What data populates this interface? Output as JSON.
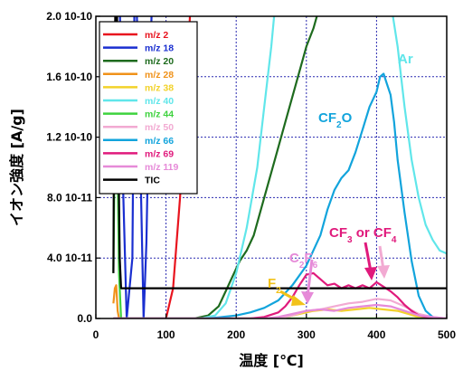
{
  "chart_data": {
    "type": "line",
    "xlabel": "温度 [℃]",
    "ylabel": "イオン強度 [A/g]",
    "xlim": [
      0,
      500
    ],
    "ylim": [
      0,
      2e-10
    ],
    "grid": true,
    "legend_position": "top-left",
    "x_ticks": [
      "0",
      "100",
      "200",
      "300",
      "400",
      "500"
    ],
    "y_ticks": [
      "0.0",
      "4.0 10-11",
      "8.0 10-11",
      "1.2 10-10",
      "1.6 10-10",
      "2.0 10-10"
    ],
    "series": [
      {
        "name": "m/z  2",
        "color": "#e8141e",
        "x": [
          25,
          60,
          90,
          100,
          110,
          120,
          130,
          135,
          500
        ],
        "y": [
          0,
          0,
          0,
          0.0,
          2e-11,
          8e-11,
          1.6e-10,
          2.1e-10,
          2.1e-10
        ]
      },
      {
        "name": "m/z 18",
        "color": "#1a2fd0",
        "x": [
          25,
          30,
          34,
          38,
          44,
          52,
          55,
          58,
          64,
          68,
          72,
          76,
          80,
          84,
          90,
          500
        ],
        "y": [
          9e-11,
          2.1e-10,
          2.1e-10,
          1e-10,
          0,
          4e-11,
          2.1e-10,
          2.1e-10,
          9e-11,
          0,
          5e-11,
          1.5e-10,
          2.1e-10,
          2.1e-10,
          2.1e-10,
          2.1e-10
        ]
      },
      {
        "name": "m/z 20",
        "color": "#1e6b1e",
        "x": [
          100,
          140,
          160,
          175,
          185,
          195,
          205,
          215,
          225,
          240,
          255,
          270,
          285,
          300,
          310,
          315,
          318
        ],
        "y": [
          0,
          0,
          2e-12,
          8e-12,
          1.8e-11,
          2.8e-11,
          3.8e-11,
          4.5e-11,
          5.5e-11,
          8e-11,
          1.05e-10,
          1.3e-10,
          1.55e-10,
          1.8e-10,
          1.92e-10,
          2e-10,
          2.1e-10
        ]
      },
      {
        "name": "m/z 28",
        "color": "#f0921a",
        "x": [
          25,
          27,
          29,
          31,
          33,
          40,
          500
        ],
        "y": [
          1e-11,
          2e-11,
          2.2e-11,
          5e-12,
          0,
          0,
          0
        ]
      },
      {
        "name": "m/z 38",
        "color": "#f2d22a",
        "x": [
          25,
          250,
          270,
          290,
          310,
          330,
          350,
          370,
          390,
          410,
          430,
          460,
          500
        ],
        "y": [
          0,
          0,
          1e-12,
          3e-12,
          5e-12,
          6e-12,
          5e-12,
          6e-12,
          7e-12,
          6e-12,
          5e-12,
          1e-12,
          0
        ]
      },
      {
        "name": "m/z 40",
        "color": "#60e6ea",
        "x": [
          25,
          150,
          170,
          185,
          200,
          215,
          230,
          240,
          250,
          255,
          258,
          420,
          430,
          440,
          450,
          460,
          470,
          480,
          490,
          500
        ],
        "y": [
          0,
          0,
          2e-12,
          1e-11,
          3e-11,
          6e-11,
          1e-10,
          1.4e-10,
          1.8e-10,
          2.05e-10,
          2.1e-10,
          2.1e-10,
          1.8e-10,
          1.4e-10,
          1.05e-10,
          8e-11,
          6.2e-11,
          5.2e-11,
          4.5e-11,
          4.3e-11
        ]
      },
      {
        "name": "m/z 44",
        "color": "#3ed23e",
        "x": [
          25,
          27,
          29,
          31,
          33,
          36,
          500
        ],
        "y": [
          3e-11,
          1.2e-10,
          1.6e-10,
          1e-10,
          3e-11,
          0,
          0
        ]
      },
      {
        "name": "m/z 50",
        "color": "#f2aad2",
        "x": [
          25,
          260,
          280,
          300,
          320,
          340,
          360,
          380,
          400,
          420,
          440,
          460,
          480,
          500
        ],
        "y": [
          0,
          0,
          2e-12,
          5e-12,
          6e-12,
          8e-12,
          1e-11,
          1.1e-11,
          1.3e-11,
          1.2e-11,
          8e-12,
          3e-12,
          1e-12,
          0
        ]
      },
      {
        "name": "m/z 66",
        "color": "#12a4dc",
        "x": [
          25,
          160,
          180,
          200,
          220,
          240,
          260,
          280,
          300,
          320,
          330,
          340,
          350,
          360,
          370,
          380,
          390,
          400,
          405,
          410,
          415,
          420,
          425,
          430,
          440,
          450,
          460,
          470,
          480,
          490,
          500
        ],
        "y": [
          0,
          0,
          1e-12,
          2e-12,
          4e-12,
          7e-12,
          1.2e-11,
          2.2e-11,
          3.5e-11,
          5.5e-11,
          7.2e-11,
          8.5e-11,
          9.3e-11,
          9.8e-11,
          1.1e-10,
          1.25e-10,
          1.4e-10,
          1.5e-10,
          1.6e-10,
          1.62e-10,
          1.55e-10,
          1.48e-10,
          1.3e-10,
          1.05e-10,
          7e-11,
          3.8e-11,
          1.5e-11,
          5e-12,
          1e-12,
          0,
          0
        ]
      },
      {
        "name": "m/z 69",
        "color": "#e01a7c",
        "x": [
          25,
          220,
          240,
          260,
          270,
          280,
          290,
          300,
          310,
          320,
          330,
          340,
          350,
          360,
          370,
          380,
          390,
          400,
          410,
          420,
          430,
          440,
          450,
          460,
          470,
          480,
          490,
          500
        ],
        "y": [
          0,
          0,
          1e-12,
          4e-12,
          8e-12,
          1.4e-11,
          2.2e-11,
          2.9e-11,
          3e-11,
          2.6e-11,
          2.2e-11,
          2.3e-11,
          2e-11,
          2.2e-11,
          2e-11,
          2.2e-11,
          2e-11,
          2.4e-11,
          2.1e-11,
          1.8e-11,
          1.4e-11,
          9e-12,
          5e-12,
          2e-12,
          1e-12,
          0,
          0,
          0
        ]
      },
      {
        "name": "m/z 119",
        "color": "#e68ad8",
        "x": [
          25,
          240,
          260,
          280,
          300,
          320,
          340,
          360,
          380,
          400,
          420,
          440,
          460,
          480,
          500
        ],
        "y": [
          0,
          0,
          1e-12,
          3e-12,
          5e-12,
          6e-12,
          5e-12,
          7e-12,
          8e-12,
          9e-12,
          8e-12,
          5e-12,
          2e-12,
          1e-12,
          0
        ]
      },
      {
        "name": "TIC",
        "color": "#000000",
        "x": [
          25,
          26,
          28,
          30,
          32,
          34,
          36,
          500
        ],
        "y": [
          3e-11,
          1.5e-10,
          2.1e-10,
          2.1e-10,
          1.2e-10,
          4e-11,
          2e-11,
          2e-11
        ]
      }
    ],
    "annotations": [
      {
        "text": "Ar",
        "color": "#60e6ea"
      },
      {
        "text": "CF2O",
        "color": "#12a4dc"
      },
      {
        "text": "CF3 or CF4",
        "color": "#e01a7c"
      },
      {
        "text": "C2F6",
        "color": "#e68ad8"
      },
      {
        "text": "F2",
        "color": "#f2c21a"
      }
    ]
  }
}
